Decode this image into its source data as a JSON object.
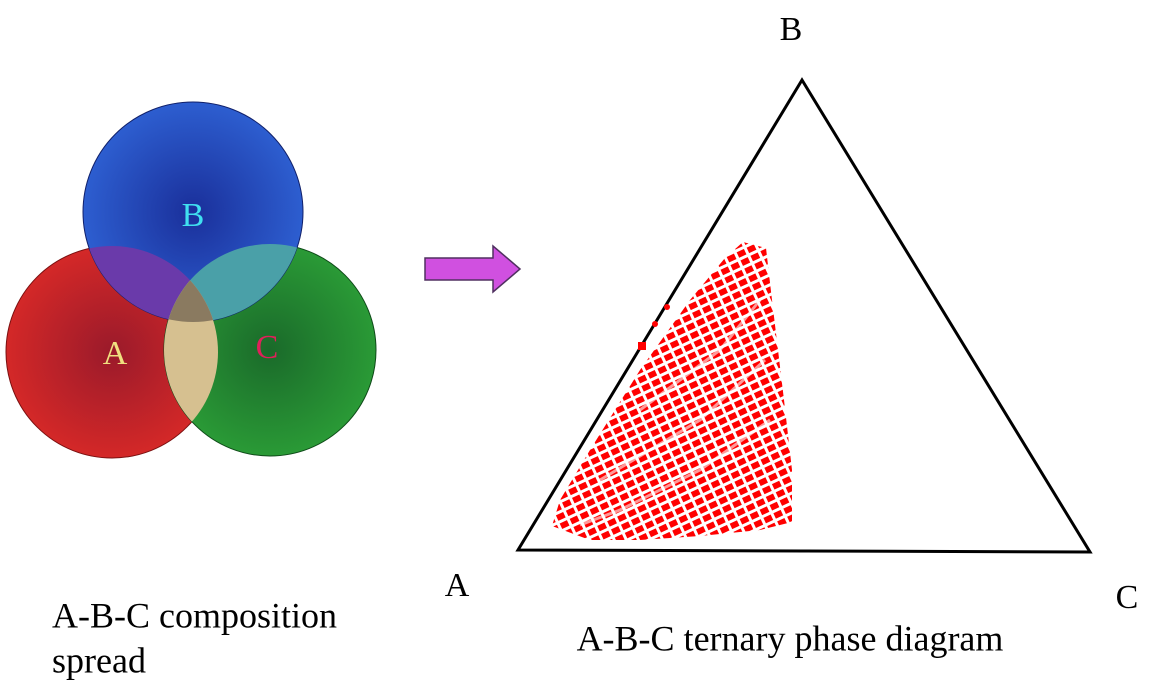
{
  "venn": {
    "labels": {
      "A": "A",
      "B": "B",
      "C": "C"
    },
    "caption": [
      "A-B-C composition",
      "spread"
    ]
  },
  "ternary": {
    "vertices": {
      "A": "A",
      "B": "B",
      "C": "C"
    },
    "caption": "A-B-C ternary phase diagram"
  }
}
